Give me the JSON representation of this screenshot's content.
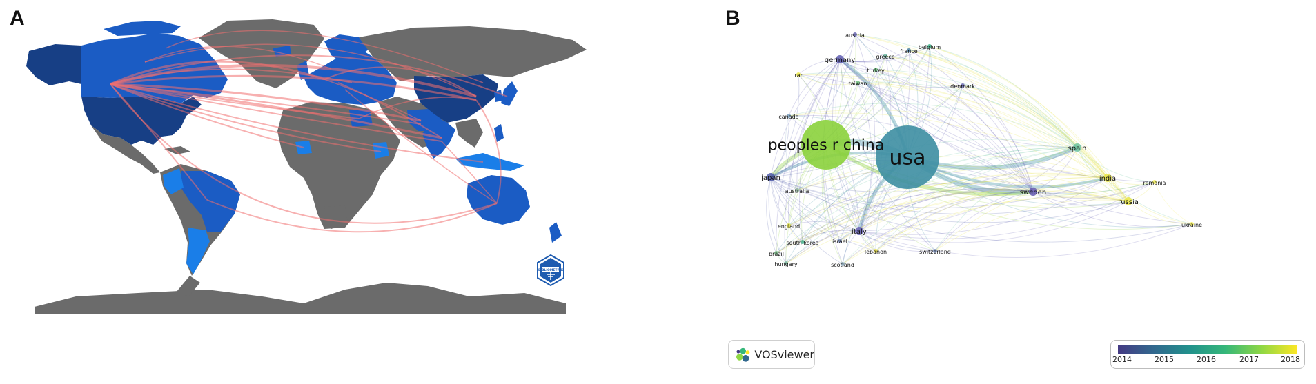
{
  "panel_a": {
    "letter": "A",
    "badge_text": "BIBLIOMETRIX",
    "colors": {
      "ocean": "#ffffff",
      "land_no_data": "#6b6b6b",
      "light_blue": "#1a7ee8",
      "mid_blue": "#1b5cc4",
      "dark_blue": "#173f85",
      "links": "#f07070"
    }
  },
  "panel_b": {
    "letter": "B",
    "nodes": [
      {
        "label": "usa",
        "color": "#3d8ea2",
        "size_class": "xl"
      },
      {
        "label": "peoples r china",
        "color": "#8bd13c",
        "size_class": "lg"
      },
      {
        "label": "sweden",
        "color": "#6459b3",
        "size_class": "sm"
      },
      {
        "label": "germany",
        "color": "#5e5cb0",
        "size_class": "sm"
      },
      {
        "label": "japan",
        "color": "#4f5aa8",
        "size_class": "sm"
      },
      {
        "label": "italy",
        "color": "#6a65b8",
        "size_class": "sm"
      },
      {
        "label": "spain",
        "color": "#6bc2a0",
        "size_class": "sm"
      },
      {
        "label": "india",
        "color": "#e8e545",
        "size_class": "sm"
      },
      {
        "label": "russia",
        "color": "#e8e545",
        "size_class": "sm"
      },
      {
        "label": "romania",
        "color": "#f4ef5a",
        "size_class": "xs"
      },
      {
        "label": "ukraine",
        "color": "#f4ef5a",
        "size_class": "xs"
      },
      {
        "label": "iran",
        "color": "#eeea47",
        "size_class": "xs"
      },
      {
        "label": "taiwan",
        "color": "#6fc07d",
        "size_class": "xs"
      },
      {
        "label": "austria",
        "color": "#6a68b0",
        "size_class": "xs"
      },
      {
        "label": "greece",
        "color": "#6fb7a0",
        "size_class": "xs"
      },
      {
        "label": "france",
        "color": "#4a7fa5",
        "size_class": "xs"
      },
      {
        "label": "belgium",
        "color": "#3fb48a",
        "size_class": "xs"
      },
      {
        "label": "turkey",
        "color": "#6fc07d",
        "size_class": "xs"
      },
      {
        "label": "denmark",
        "color": "#6a68b0",
        "size_class": "xs"
      },
      {
        "label": "canada",
        "color": "#7a9fbd",
        "size_class": "xs"
      },
      {
        "label": "australia",
        "color": "#8fb09a",
        "size_class": "xs"
      },
      {
        "label": "england",
        "color": "#e4e340",
        "size_class": "xs"
      },
      {
        "label": "south korea",
        "color": "#46b08d",
        "size_class": "xs"
      },
      {
        "label": "israel",
        "color": "#7a8ec0",
        "size_class": "xs"
      },
      {
        "label": "brazil",
        "color": "#7bc18b",
        "size_class": "xs"
      },
      {
        "label": "hungary",
        "color": "#7ab5a0",
        "size_class": "xs"
      },
      {
        "label": "scotland",
        "color": "#8ca7b8",
        "size_class": "xs"
      },
      {
        "label": "lebanon",
        "color": "#eee444",
        "size_class": "xs"
      },
      {
        "label": "switzerland",
        "color": "#7f93bd",
        "size_class": "xs"
      }
    ],
    "logo_text": "VOSviewer",
    "legend_ticks": [
      "2014",
      "2015",
      "2016",
      "2017",
      "2018"
    ]
  }
}
